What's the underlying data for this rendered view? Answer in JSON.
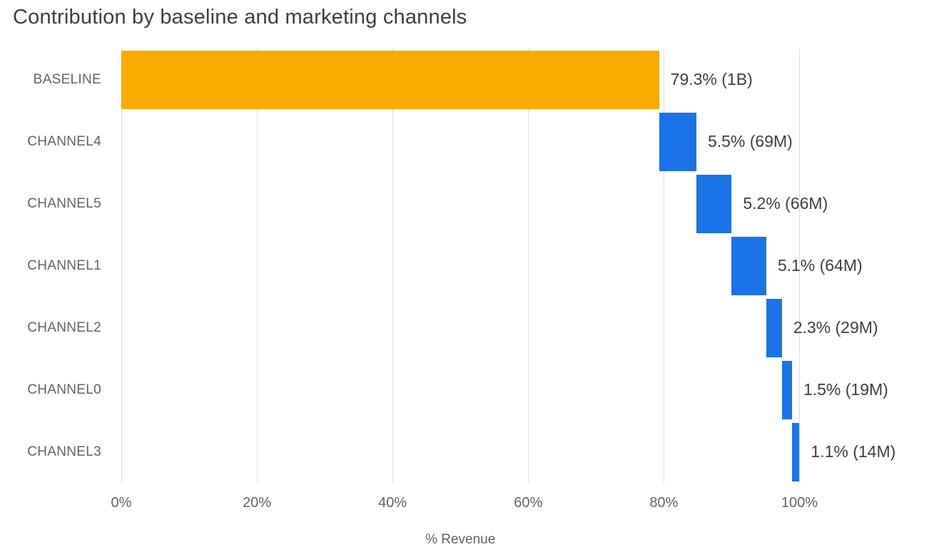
{
  "chart_data": {
    "type": "bar",
    "subtype": "waterfall-horizontal",
    "title": "Contribution by baseline and marketing channels",
    "xlabel": "% Revenue",
    "ylabel": "",
    "legend": "none",
    "grid": "vertical",
    "axis_max_display": 121,
    "x_ticks": [
      "0%",
      "20%",
      "40%",
      "60%",
      "80%",
      "100%"
    ],
    "x_tick_values": [
      0,
      20,
      40,
      60,
      80,
      100
    ],
    "categories": [
      "BASELINE",
      "CHANNEL4",
      "CHANNEL5",
      "CHANNEL1",
      "CHANNEL2",
      "CHANNEL0",
      "CHANNEL3"
    ],
    "segments": [
      {
        "category": "BASELINE",
        "start": 0,
        "value": 79.3,
        "label": "79.3% (1B)",
        "color": "#F9AB00"
      },
      {
        "category": "CHANNEL4",
        "start": 79.3,
        "value": 5.5,
        "label": "5.5% (69M)",
        "color": "#1A73E8"
      },
      {
        "category": "CHANNEL5",
        "start": 84.8,
        "value": 5.2,
        "label": "5.2% (66M)",
        "color": "#1A73E8"
      },
      {
        "category": "CHANNEL1",
        "start": 90.0,
        "value": 5.1,
        "label": "5.1% (64M)",
        "color": "#1A73E8"
      },
      {
        "category": "CHANNEL2",
        "start": 95.1,
        "value": 2.3,
        "label": "2.3% (29M)",
        "color": "#1A73E8"
      },
      {
        "category": "CHANNEL0",
        "start": 97.4,
        "value": 1.5,
        "label": "1.5% (19M)",
        "color": "#1A73E8"
      },
      {
        "category": "CHANNEL3",
        "start": 98.9,
        "value": 1.1,
        "label": "1.1% (14M)",
        "color": "#1A73E8"
      }
    ],
    "colors": {
      "baseline": "#F9AB00",
      "channel": "#1A73E8",
      "gridline": "#DADCE0",
      "text": "#3C4043",
      "muted_text": "#5F6368",
      "background": "#FFFFFF"
    }
  }
}
